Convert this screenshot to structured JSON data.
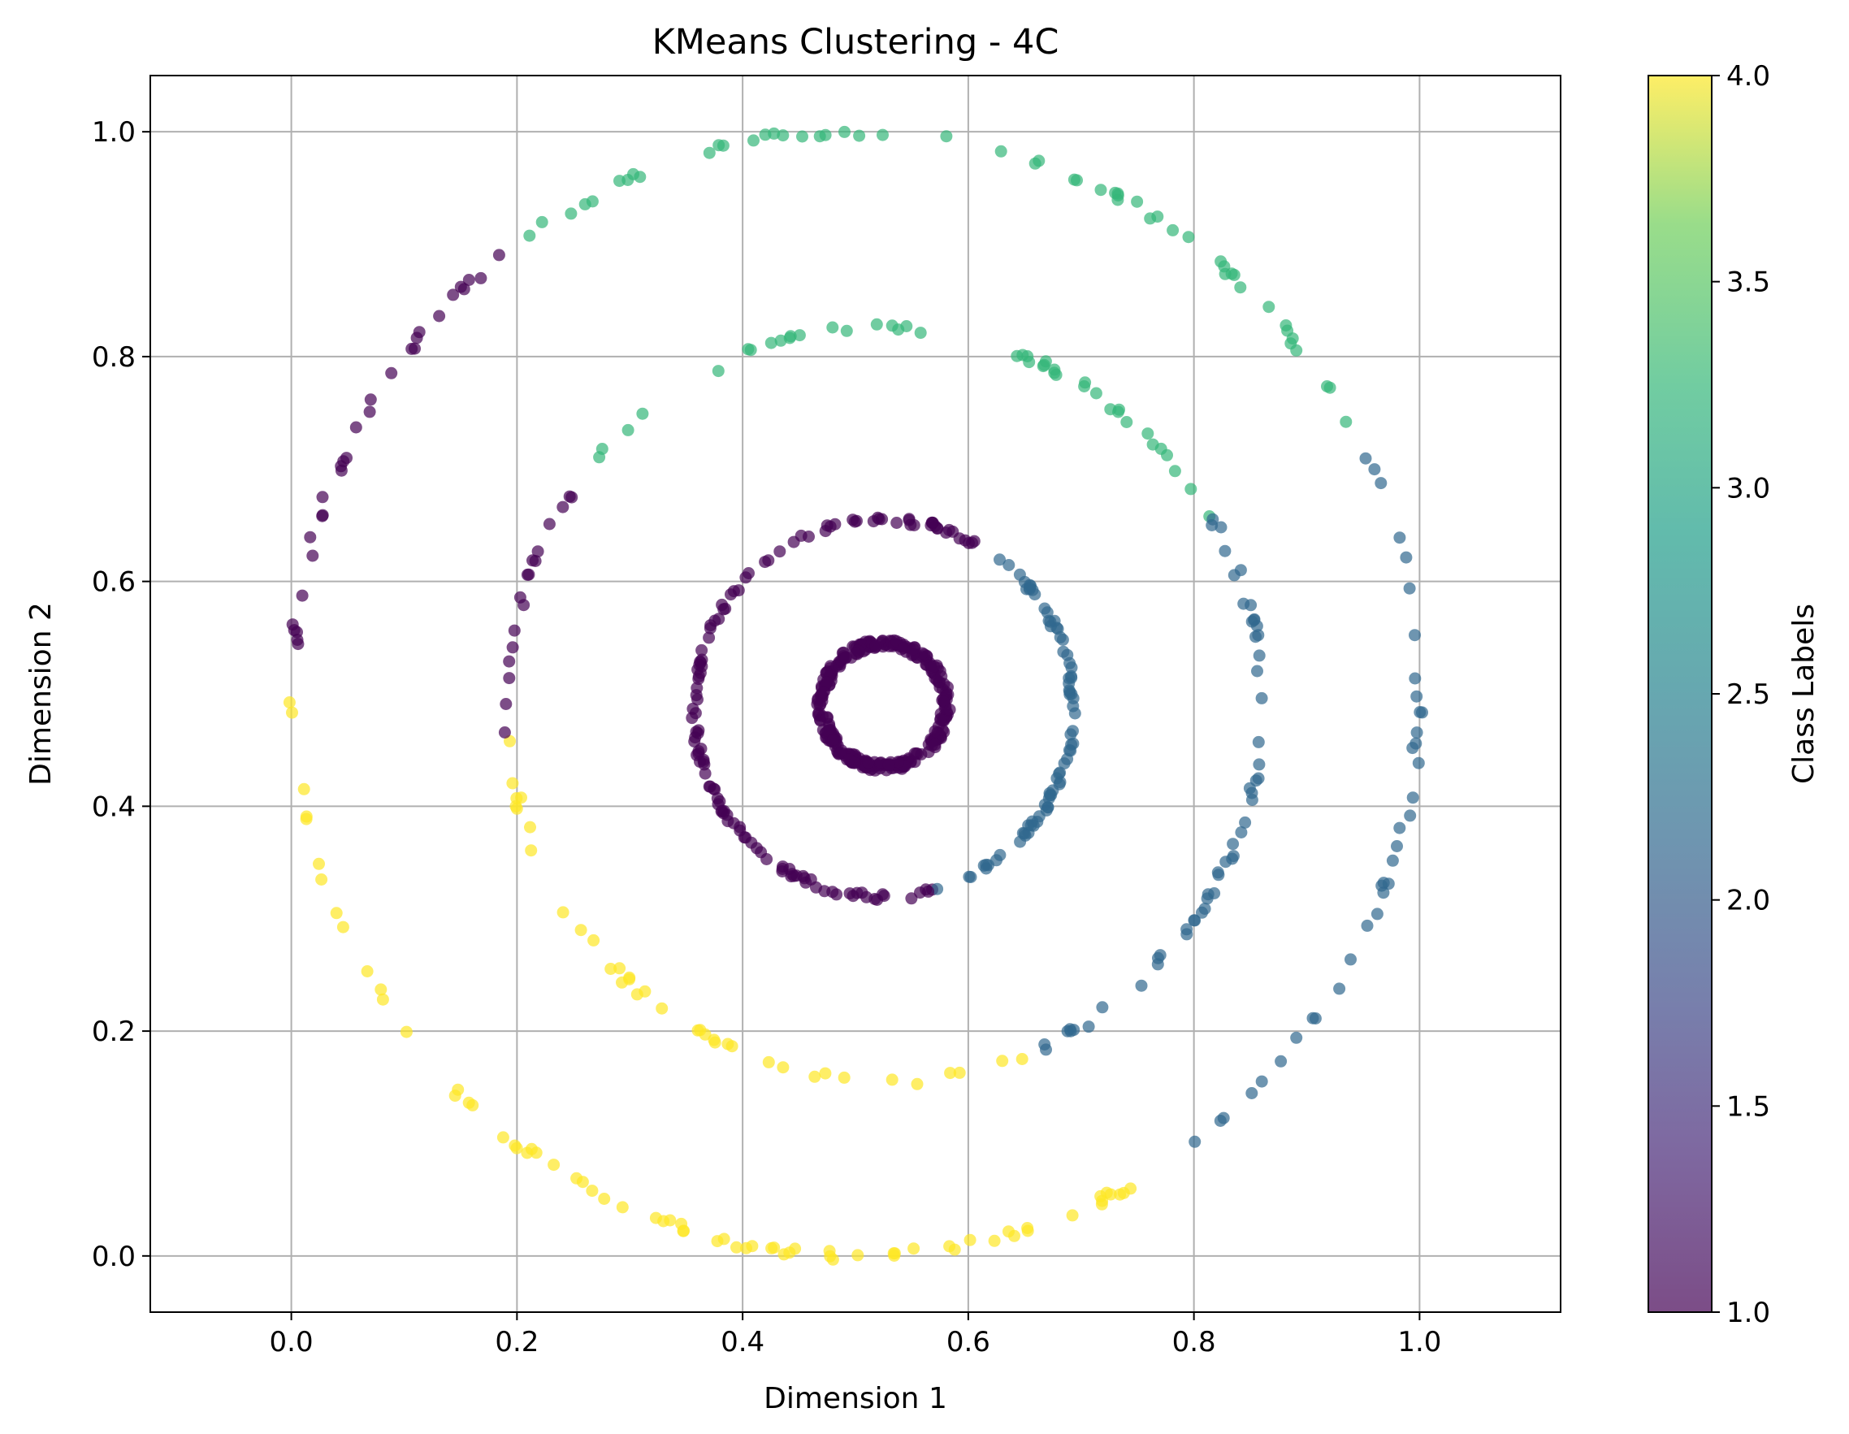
{
  "chart_data": {
    "type": "scatter",
    "title": "KMeans Clustering - 4C",
    "xlabel": "Dimension 1",
    "ylabel": "Dimension 2",
    "xlim": [
      -0.125,
      1.125
    ],
    "ylim": [
      -0.05,
      1.05
    ],
    "xticks": [
      0.0,
      0.2,
      0.4,
      0.6,
      0.8,
      1.0
    ],
    "yticks": [
      0.0,
      0.2,
      0.4,
      0.6,
      0.8,
      1.0
    ],
    "xtick_labels": [
      "0.0",
      "0.2",
      "0.4",
      "0.6",
      "0.8",
      "1.0"
    ],
    "ytick_labels": [
      "0.0",
      "0.2",
      "0.4",
      "0.6",
      "0.8",
      "1.0"
    ],
    "grid": true,
    "colorbar": {
      "label": "Class Labels",
      "range": [
        1.0,
        4.0
      ],
      "colormap": "viridis",
      "ticks": [
        1.0,
        1.5,
        2.0,
        2.5,
        3.0,
        3.5,
        4.0
      ],
      "tick_labels": [
        "1.0",
        "1.5",
        "2.0",
        "2.5",
        "3.0",
        "3.5",
        "4.0"
      ]
    },
    "point_alpha": 0.7,
    "class_colors": {
      "1": "#440154",
      "2": "#31688e",
      "3": "#35b779",
      "4": "#fde725"
    },
    "rings": [
      {
        "center": [
          0.525,
          0.49
        ],
        "radius": 0.055,
        "n_points": 300,
        "noise": 0.004,
        "segments": [
          {
            "from": 0,
            "to": 360,
            "class": 1
          }
        ]
      },
      {
        "center": [
          0.525,
          0.487
        ],
        "radius": 0.168,
        "n_points": 210,
        "noise": 0.003,
        "segments": [
          {
            "from": -75,
            "to": 60,
            "class": 2
          },
          {
            "from": 60,
            "to": 285,
            "class": 1
          }
        ]
      },
      {
        "center": [
          0.525,
          0.49
        ],
        "radius": 0.335,
        "n_points": 150,
        "noise": 0.004,
        "segments": [
          {
            "from": -65,
            "to": 30,
            "class": 2
          },
          {
            "from": 30,
            "to": 142,
            "class": 3
          },
          {
            "from": 142,
            "to": 185,
            "class": 1
          },
          {
            "from": 185,
            "to": 295,
            "class": 4
          }
        ]
      },
      {
        "center": [
          0.5,
          0.5
        ],
        "radius": 0.5,
        "n_points": 190,
        "noise": 0.004,
        "segments": [
          {
            "from": -60,
            "to": 25,
            "class": 2
          },
          {
            "from": 25,
            "to": 128,
            "class": 3
          },
          {
            "from": 128,
            "to": 178,
            "class": 1
          },
          {
            "from": 178,
            "to": 300,
            "class": 4
          }
        ]
      }
    ]
  }
}
